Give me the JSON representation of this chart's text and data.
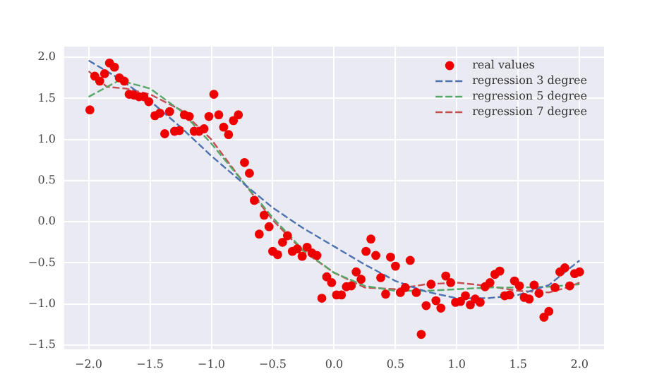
{
  "chart_data": {
    "type": "scatter",
    "xlim": [
      -2.2,
      2.2
    ],
    "ylim": [
      -1.55,
      2.13
    ],
    "xticks": [
      {
        "value": -2,
        "label": "−2.0"
      },
      {
        "value": -1.5,
        "label": "−1.5"
      },
      {
        "value": -1,
        "label": "−1.0"
      },
      {
        "value": -0.5,
        "label": "−0.5"
      },
      {
        "value": 0,
        "label": "0.0"
      },
      {
        "value": 0.5,
        "label": "0.5"
      },
      {
        "value": 1,
        "label": "1.0"
      },
      {
        "value": 1.5,
        "label": "1.5"
      },
      {
        "value": 2,
        "label": "2.0"
      }
    ],
    "yticks": [
      {
        "value": -1.5,
        "label": "−1.5"
      },
      {
        "value": -1,
        "label": "−1.0"
      },
      {
        "value": -0.5,
        "label": "−0.5"
      },
      {
        "value": 0,
        "label": "0.0"
      },
      {
        "value": 0.5,
        "label": "0.5"
      },
      {
        "value": 1,
        "label": "1.0"
      },
      {
        "value": 1.5,
        "label": "1.5"
      },
      {
        "value": 2,
        "label": "2.0"
      }
    ],
    "grid": true,
    "legend": "top right",
    "series": [
      {
        "name": "real values",
        "marker": "circle",
        "color": "#ee0000",
        "x": [
          -1.99,
          -1.95,
          -1.91,
          -1.87,
          -1.83,
          -1.79,
          -1.75,
          -1.71,
          -1.67,
          -1.63,
          -1.59,
          -1.55,
          -1.51,
          -1.46,
          -1.42,
          -1.38,
          -1.34,
          -1.3,
          -1.26,
          -1.22,
          -1.18,
          -1.14,
          -1.1,
          -1.06,
          -1.02,
          -0.98,
          -0.94,
          -0.9,
          -0.86,
          -0.82,
          -0.78,
          -0.73,
          -0.69,
          -0.65,
          -0.61,
          -0.57,
          -0.53,
          -0.5,
          -0.46,
          -0.42,
          -0.38,
          -0.34,
          -0.3,
          -0.26,
          -0.22,
          -0.18,
          -0.14,
          -0.1,
          -0.06,
          -0.02,
          0.02,
          0.06,
          0.1,
          0.14,
          0.18,
          0.22,
          0.26,
          0.3,
          0.34,
          0.38,
          0.42,
          0.46,
          0.5,
          0.54,
          0.58,
          0.62,
          0.67,
          0.71,
          0.75,
          0.79,
          0.83,
          0.87,
          0.91,
          0.95,
          0.99,
          1.03,
          1.07,
          1.11,
          1.15,
          1.19,
          1.23,
          1.27,
          1.31,
          1.35,
          1.39,
          1.43,
          1.47,
          1.51,
          1.55,
          1.59,
          1.63,
          1.67,
          1.71,
          1.75,
          1.8,
          1.84,
          1.88,
          1.92,
          1.96,
          2.0
        ],
        "values": [
          1.36,
          1.77,
          1.71,
          1.8,
          1.93,
          1.88,
          1.75,
          1.71,
          1.55,
          1.54,
          1.52,
          1.52,
          1.46,
          1.29,
          1.32,
          1.07,
          1.34,
          1.1,
          1.11,
          1.3,
          1.28,
          1.1,
          1.1,
          1.13,
          1.28,
          1.55,
          1.3,
          1.15,
          1.06,
          1.23,
          1.3,
          0.72,
          0.59,
          0.26,
          -0.15,
          0.08,
          -0.06,
          -0.36,
          -0.4,
          -0.25,
          -0.17,
          -0.36,
          -0.33,
          -0.42,
          -0.31,
          -0.38,
          -0.41,
          -0.93,
          -0.67,
          -0.74,
          -0.89,
          -0.89,
          -0.79,
          -0.78,
          -0.61,
          -0.7,
          -0.36,
          -0.21,
          -0.41,
          -0.68,
          -0.88,
          -0.43,
          -0.54,
          -0.86,
          -0.8,
          -0.47,
          -0.86,
          -1.37,
          -1.02,
          -0.76,
          -0.96,
          -1.05,
          -0.66,
          -0.74,
          -0.98,
          -0.97,
          -0.9,
          -1.01,
          -0.94,
          -0.98,
          -0.79,
          -0.74,
          -0.64,
          -0.6,
          -0.9,
          -0.89,
          -0.72,
          -0.78,
          -0.92,
          -0.94,
          -0.77,
          -0.87,
          -1.16,
          -1.09,
          -0.8,
          -0.61,
          -0.56,
          -0.78,
          -0.63,
          -0.61
        ]
      },
      {
        "name": "regression 3 degree",
        "type": "line",
        "line_style": "dashed",
        "marker": "none",
        "color": "#4c72b0",
        "x": [
          -2,
          -1.75,
          -1.5,
          -1.25,
          -1,
          -0.75,
          -0.5,
          -0.25,
          0,
          0.25,
          0.5,
          0.75,
          1,
          1.25,
          1.5,
          1.75,
          2
        ],
        "values": [
          1.96,
          1.74,
          1.47,
          1.15,
          0.8,
          0.48,
          0.17,
          -0.08,
          -0.3,
          -0.52,
          -0.72,
          -0.85,
          -0.93,
          -0.93,
          -0.89,
          -0.77,
          -0.47
        ]
      },
      {
        "name": "regression 5 degree",
        "type": "line",
        "line_style": "dashed",
        "marker": "none",
        "color": "#55a868",
        "x": [
          -2,
          -1.75,
          -1.5,
          -1.25,
          -1,
          -0.75,
          -0.5,
          -0.25,
          0,
          0.25,
          0.5,
          0.75,
          1,
          1.25,
          1.5,
          1.75,
          2
        ],
        "values": [
          1.52,
          1.72,
          1.62,
          1.35,
          0.95,
          0.5,
          0.05,
          -0.35,
          -0.62,
          -0.78,
          -0.84,
          -0.84,
          -0.82,
          -0.8,
          -0.8,
          -0.79,
          -0.76
        ]
      },
      {
        "name": "regression 7 degree",
        "type": "line",
        "line_style": "dashed",
        "marker": "none",
        "color": "#c44e52",
        "x": [
          -2,
          -1.85,
          -1.7,
          -1.5,
          -1.25,
          -1,
          -0.75,
          -0.5,
          -0.25,
          0,
          0.25,
          0.5,
          0.75,
          1,
          1.25,
          1.5,
          1.75,
          1.9,
          2
        ],
        "values": [
          1.83,
          1.64,
          1.62,
          1.55,
          1.36,
          1.0,
          0.5,
          0.02,
          -0.36,
          -0.62,
          -0.8,
          -0.82,
          -0.76,
          -0.74,
          -0.78,
          -0.84,
          -0.86,
          -0.8,
          -0.74
        ]
      }
    ]
  }
}
